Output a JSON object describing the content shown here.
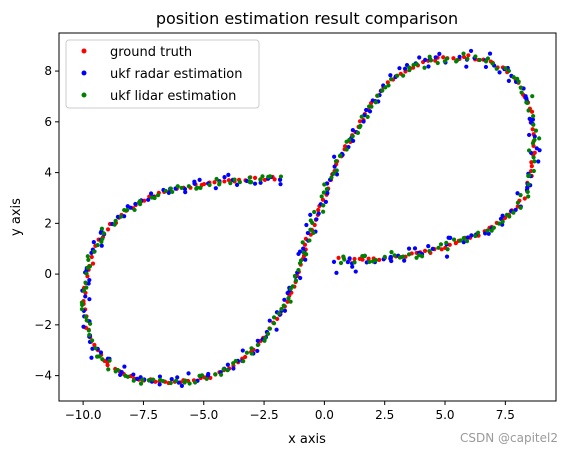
{
  "watermark": "CSDN @capitel2",
  "chart_data": {
    "type": "scatter",
    "title": "position estimation result comparison",
    "xlabel": "x axis",
    "ylabel": "y axis",
    "xlim": [
      -11.0,
      9.6
    ],
    "ylim": [
      -5.0,
      9.5
    ],
    "xticks": [
      -10.0,
      -7.5,
      -5.0,
      -2.5,
      0.0,
      2.5,
      5.0,
      7.5
    ],
    "xtick_labels": [
      "−10.0",
      "−7.5",
      "−5.0",
      "−2.5",
      "0.0",
      "2.5",
      "5.0",
      "7.5"
    ],
    "yticks": [
      -4,
      -2,
      0,
      2,
      4,
      6,
      8
    ],
    "ytick_labels": [
      "−4",
      "−2",
      "0",
      "2",
      "4",
      "6",
      "8"
    ],
    "grid": false,
    "legend": "top-left",
    "trajectory_points_per_series": 240,
    "series": [
      {
        "name": "ground truth",
        "color": "#ff0000",
        "noise": 0.04
      },
      {
        "name": "ukf radar estimation",
        "color": "#0000ff",
        "noise": 0.14
      },
      {
        "name": "ukf lidar estimation",
        "color": "#008000",
        "noise": 0.09
      }
    ],
    "path_waypoints": [
      [
        0.6,
        0.6
      ],
      [
        2.0,
        0.6
      ],
      [
        3.5,
        0.75
      ],
      [
        5.0,
        1.1
      ],
      [
        6.5,
        1.6
      ],
      [
        7.6,
        2.3
      ],
      [
        8.3,
        3.1
      ],
      [
        8.6,
        4.2
      ],
      [
        8.7,
        5.3
      ],
      [
        8.5,
        6.5
      ],
      [
        8.0,
        7.5
      ],
      [
        7.2,
        8.2
      ],
      [
        6.2,
        8.5
      ],
      [
        5.0,
        8.5
      ],
      [
        4.0,
        8.3
      ],
      [
        3.0,
        7.8
      ],
      [
        2.2,
        7.0
      ],
      [
        1.5,
        5.9
      ],
      [
        0.8,
        4.9
      ],
      [
        0.3,
        3.8
      ],
      [
        -0.2,
        2.6
      ],
      [
        -0.8,
        1.0
      ],
      [
        -1.3,
        -0.5
      ],
      [
        -2.0,
        -1.8
      ],
      [
        -3.0,
        -3.0
      ],
      [
        -4.3,
        -3.9
      ],
      [
        -5.8,
        -4.2
      ],
      [
        -7.3,
        -4.2
      ],
      [
        -8.6,
        -3.8
      ],
      [
        -9.4,
        -3.0
      ],
      [
        -9.9,
        -1.8
      ],
      [
        -9.9,
        -0.5
      ],
      [
        -9.6,
        0.8
      ],
      [
        -9.1,
        1.6
      ],
      [
        -8.3,
        2.4
      ],
      [
        -7.3,
        3.0
      ],
      [
        -6.0,
        3.4
      ],
      [
        -4.5,
        3.6
      ],
      [
        -3.0,
        3.75
      ],
      [
        -1.8,
        3.75
      ]
    ],
    "radar_outliers": [
      [
        0.5,
        0.05
      ],
      [
        1.3,
        0.1
      ]
    ]
  }
}
